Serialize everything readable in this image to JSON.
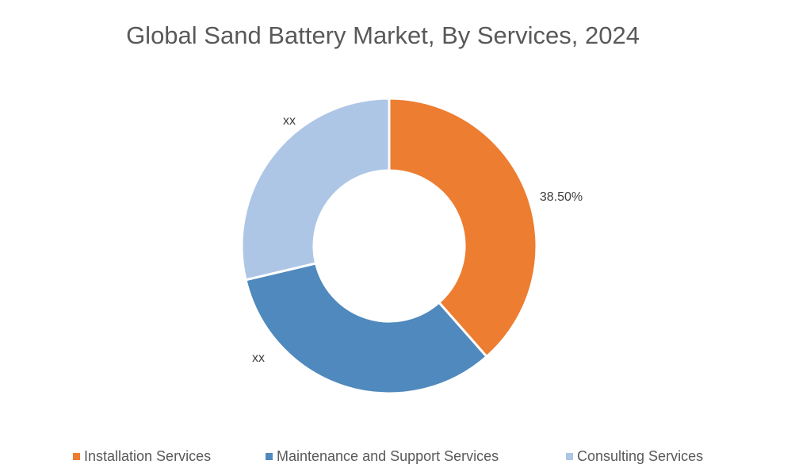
{
  "chart_data": {
    "type": "donut",
    "title": "Global Sand Battery Market, By Services, 2024",
    "categories": [
      "Installation Services",
      "Maintenance and Support Services",
      "Consulting Services"
    ],
    "values": [
      38.5,
      32.8,
      28.7
    ],
    "value_labels": [
      "38.50%",
      "xx",
      "xx"
    ],
    "colors": [
      "#ED7D31",
      "#4F89BD",
      "#AEC6E6"
    ],
    "legend": "bottom"
  }
}
